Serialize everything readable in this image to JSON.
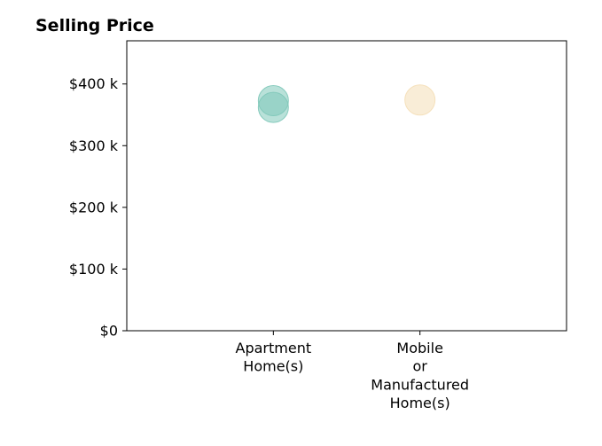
{
  "chart_data": {
    "type": "scatter",
    "title": "Selling Price",
    "xlabel": "",
    "ylabel": "",
    "categories": [
      [
        "Apartment",
        "Home(s)"
      ],
      [
        "Mobile",
        "or",
        "Manufactured",
        "Home(s)"
      ]
    ],
    "category_range": [
      0,
      3
    ],
    "category_positions": [
      1,
      2
    ],
    "ylim": [
      0,
      470000
    ],
    "yticks": [
      0,
      100000,
      200000,
      300000,
      400000
    ],
    "ytick_labels": [
      "$0",
      "$100 k",
      "$200 k",
      "$300 k",
      "$400 k"
    ],
    "grid": false,
    "legend": "none",
    "points": [
      {
        "category": 0,
        "y": 373000,
        "color": "#7fc8b9"
      },
      {
        "category": 0,
        "y": 362000,
        "color": "#7fc8b9"
      },
      {
        "category": 1,
        "y": 374000,
        "color": "#f4deb6"
      }
    ]
  }
}
